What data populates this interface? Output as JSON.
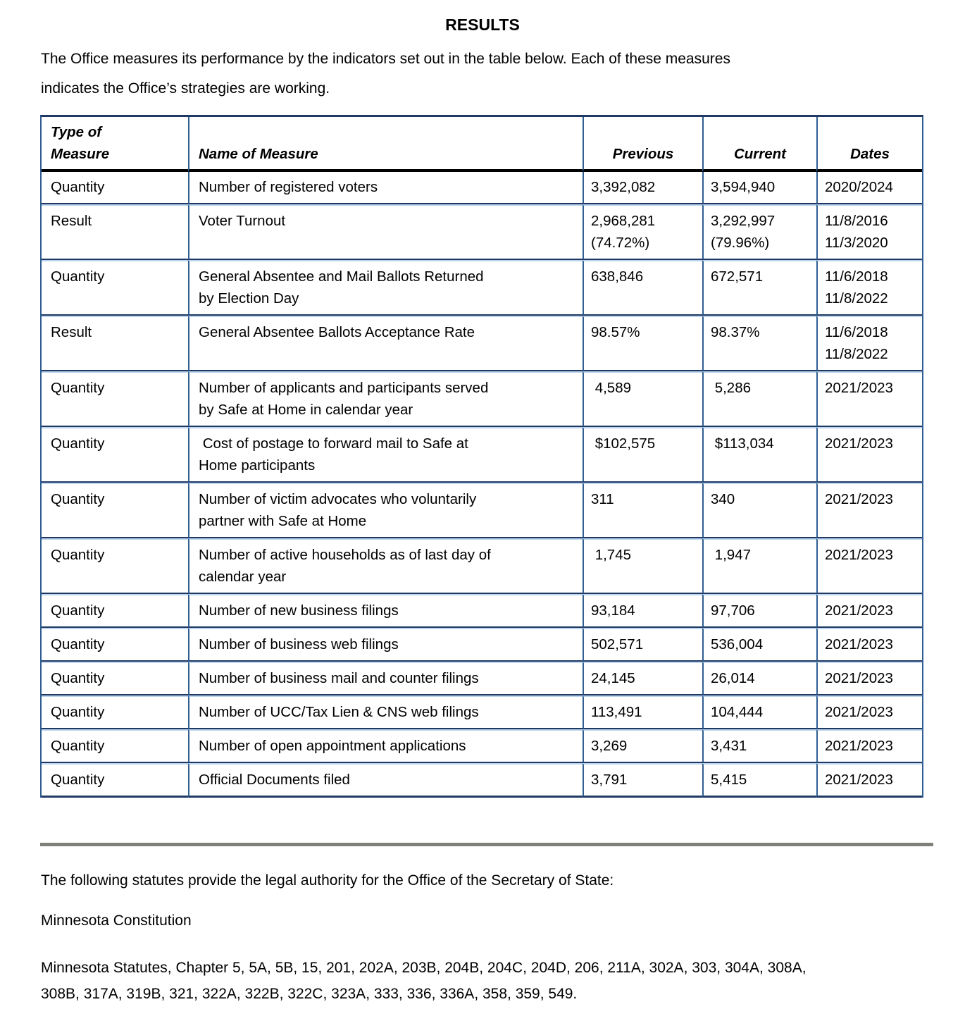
{
  "page": {
    "title": "RESULTS",
    "intro": "The Office measures its performance by the indicators set out in the table below. Each of these measures\nindicates the Office’s strategies are working."
  },
  "table": {
    "headers": [
      "Type of\nMeasure",
      "Name of Measure",
      "Previous",
      "Current",
      "Dates"
    ],
    "rows": [
      {
        "type": "Quantity",
        "name": "Number of registered voters",
        "previous": "3,392,082",
        "current": "3,594,940",
        "dates": "2020/2024"
      },
      {
        "type": "Result",
        "name": "Voter Turnout",
        "previous": "2,968,281\n(74.72%)",
        "current": "3,292,997\n(79.96%)",
        "dates": "11/8/2016\n11/3/2020"
      },
      {
        "type": "Quantity",
        "name": "General Absentee and Mail Ballots Returned\nby Election Day",
        "previous": "638,846",
        "current": "672,571",
        "dates": "11/6/2018\n11/8/2022"
      },
      {
        "type": "Result",
        "name": "General Absentee Ballots Acceptance Rate",
        "previous": "98.57%",
        "current": "98.37%",
        "dates": "11/6/2018\n11/8/2022"
      },
      {
        "type": "Quantity",
        "name": "Number of applicants and participants served\nby Safe at Home in calendar year",
        "previous": " 4,589",
        "current": " 5,286",
        "dates": "2021/2023"
      },
      {
        "type": "Quantity",
        "name": " Cost of postage to forward mail to Safe at\nHome participants",
        "previous": " $102,575",
        "current": " $113,034",
        "dates": "2021/2023"
      },
      {
        "type": "Quantity",
        "name": "Number of victim advocates who voluntarily\npartner with Safe at Home",
        "previous": "311",
        "current": "340",
        "dates": "2021/2023"
      },
      {
        "type": "Quantity",
        "name": "Number of active households as of last day of\ncalendar year",
        "previous": " 1,745",
        "current": " 1,947",
        "dates": "2021/2023"
      },
      {
        "type": "Quantity",
        "name": "Number of new business filings",
        "previous": "93,184",
        "current": "97,706",
        "dates": "2021/2023"
      },
      {
        "type": "Quantity",
        "name": "Number of business web filings",
        "previous": "502,571",
        "current": "536,004",
        "dates": "2021/2023"
      },
      {
        "type": "Quantity",
        "name": "Number of business mail and counter filings",
        "previous": "24,145",
        "current": "26,014",
        "dates": "2021/2023"
      },
      {
        "type": "Quantity",
        "name": "Number of UCC/Tax Lien & CNS web filings",
        "previous": "113,491",
        "current": "104,444",
        "dates": "2021/2023"
      },
      {
        "type": "Quantity",
        "name": "Number of open appointment applications",
        "previous": "3,269",
        "current": "3,431",
        "dates": "2021/2023"
      },
      {
        "type": "Quantity",
        "name": "Official Documents filed",
        "previous": "3,791",
        "current": "5,415",
        "dates": "2021/2023"
      }
    ]
  },
  "colors": {
    "table_border_dark": "#1f3864",
    "table_border_steel": "#2f5e91",
    "table_border_light": "#bdd6ee",
    "header_rule": "#000000",
    "divider": "#7f807a"
  },
  "footer": {
    "statutes_intro": "The following statutes provide the legal authority for the Office of the Secretary of State:",
    "constitution": "Minnesota Constitution",
    "statutes": "Minnesota Statutes, Chapter 5, 5A, 5B, 15, 201, 202A, 203B, 204B, 204C, 204D, 206, 211A, 302A, 303, 304A, 308A,\n308B, 317A, 319B, 321, 322A, 322B, 322C, 323A, 333, 336, 336A, 358, 359, 549."
  }
}
